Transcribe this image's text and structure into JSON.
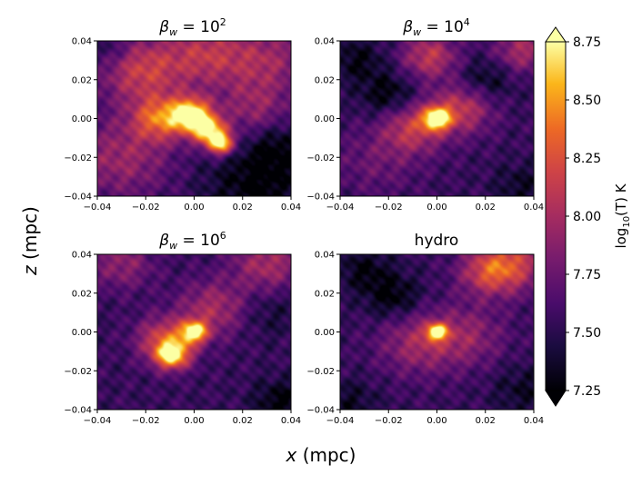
{
  "chart_data": {
    "type": "heatmap",
    "layout": "2x2 panel grid with shared colorbar",
    "xlabel": {
      "var": "x",
      "unit": "(mpc)"
    },
    "ylabel": {
      "var": "z",
      "unit": "(mpc)"
    },
    "xlim": [
      -0.04,
      0.04
    ],
    "ylim": [
      -0.04,
      0.04
    ],
    "x_ticks": [
      "−0.04",
      "−0.02",
      "0.00",
      "0.02",
      "0.04"
    ],
    "y_ticks": [
      "0.04",
      "0.02",
      "0.00",
      "−0.02",
      "−0.04"
    ],
    "colormap": "inferno",
    "colorbar": {
      "label_main": "log",
      "label_sub": "10",
      "label_rest": "(T) K",
      "range": [
        7.25,
        8.75
      ],
      "extend": "both",
      "ticks": [
        "8.75",
        "8.50",
        "8.25",
        "8.00",
        "7.75",
        "7.50",
        "7.25"
      ]
    },
    "panels": [
      {
        "title": {
          "symbol": "β",
          "subscript": "w",
          "rel": " = 10",
          "exponent": "2"
        },
        "hotspots": [
          {
            "x": -0.001,
            "y": 0.002,
            "log10T": 8.7,
            "spread": 0.006
          },
          {
            "x": 0.011,
            "y": -0.013,
            "log10T": 8.65,
            "spread": 0.004
          },
          {
            "x": 0.006,
            "y": -0.006,
            "log10T": 8.55,
            "spread": 0.005
          },
          {
            "x": -0.014,
            "y": 0.0,
            "log10T": 8.3,
            "spread": 0.008
          },
          {
            "x": -0.022,
            "y": 0.025,
            "log10T": 8.15,
            "spread": 0.012
          },
          {
            "x": 0.005,
            "y": 0.033,
            "log10T": 8.05,
            "spread": 0.012
          },
          {
            "x": -0.03,
            "y": -0.02,
            "log10T": 7.95,
            "spread": 0.014
          },
          {
            "x": 0.03,
            "y": 0.03,
            "log10T": 7.95,
            "spread": 0.012
          },
          {
            "x": 0.025,
            "y": 0.005,
            "log10T": 7.9,
            "spread": 0.01
          }
        ],
        "cold_regions": [
          {
            "x": 0.025,
            "y": -0.035,
            "log10T": 7.25,
            "spread": 0.014
          },
          {
            "x": 0.035,
            "y": -0.015,
            "log10T": 7.3,
            "spread": 0.01
          },
          {
            "x": -0.035,
            "y": 0.035,
            "log10T": 7.35,
            "spread": 0.008
          }
        ]
      },
      {
        "title": {
          "symbol": "β",
          "subscript": "w",
          "rel": " = 10",
          "exponent": "4"
        },
        "hotspots": [
          {
            "x": 0.0,
            "y": 0.0,
            "log10T": 8.7,
            "spread": 0.004
          },
          {
            "x": -0.01,
            "y": -0.005,
            "log10T": 8.1,
            "spread": 0.009
          },
          {
            "x": 0.01,
            "y": 0.005,
            "log10T": 8.1,
            "spread": 0.009
          },
          {
            "x": -0.003,
            "y": 0.032,
            "log10T": 8.1,
            "spread": 0.008
          },
          {
            "x": 0.035,
            "y": 0.035,
            "log10T": 8.0,
            "spread": 0.008
          },
          {
            "x": -0.025,
            "y": -0.022,
            "log10T": 7.75,
            "spread": 0.012
          }
        ],
        "cold_regions": [
          {
            "x": -0.02,
            "y": 0.012,
            "log10T": 7.25,
            "spread": 0.008
          },
          {
            "x": 0.02,
            "y": 0.02,
            "log10T": 7.3,
            "spread": 0.008
          },
          {
            "x": -0.033,
            "y": 0.03,
            "log10T": 7.3,
            "spread": 0.008
          },
          {
            "x": 0.035,
            "y": -0.035,
            "log10T": 7.35,
            "spread": 0.008
          }
        ]
      },
      {
        "title": {
          "symbol": "β",
          "subscript": "w",
          "rel": " = 10",
          "exponent": "6"
        },
        "hotspots": [
          {
            "x": 0.0,
            "y": 0.0,
            "log10T": 8.65,
            "spread": 0.004
          },
          {
            "x": -0.009,
            "y": -0.012,
            "log10T": 8.6,
            "spread": 0.005
          },
          {
            "x": -0.012,
            "y": -0.004,
            "log10T": 8.2,
            "spread": 0.008
          },
          {
            "x": 0.008,
            "y": 0.012,
            "log10T": 8.0,
            "spread": 0.01
          },
          {
            "x": 0.03,
            "y": 0.035,
            "log10T": 8.0,
            "spread": 0.01
          },
          {
            "x": -0.03,
            "y": 0.035,
            "log10T": 7.9,
            "spread": 0.009
          }
        ],
        "cold_regions": [
          {
            "x": 0.036,
            "y": -0.036,
            "log10T": 7.25,
            "spread": 0.008
          },
          {
            "x": 0.03,
            "y": 0.01,
            "log10T": 7.4,
            "spread": 0.009
          }
        ]
      },
      {
        "title": {
          "text": "hydro"
        },
        "hotspots": [
          {
            "x": 0.0,
            "y": 0.0,
            "log10T": 8.65,
            "spread": 0.003
          },
          {
            "x": -0.008,
            "y": -0.006,
            "log10T": 7.95,
            "spread": 0.011
          },
          {
            "x": 0.012,
            "y": -0.002,
            "log10T": 7.9,
            "spread": 0.011
          },
          {
            "x": 0.03,
            "y": 0.035,
            "log10T": 8.2,
            "spread": 0.01
          },
          {
            "x": 0.02,
            "y": 0.03,
            "log10T": 7.95,
            "spread": 0.008
          }
        ],
        "cold_regions": [
          {
            "x": -0.018,
            "y": 0.018,
            "log10T": 7.25,
            "spread": 0.008
          },
          {
            "x": -0.036,
            "y": -0.036,
            "log10T": 7.35,
            "spread": 0.008
          },
          {
            "x": 0.036,
            "y": -0.03,
            "log10T": 7.35,
            "spread": 0.009
          },
          {
            "x": -0.03,
            "y": 0.032,
            "log10T": 7.3,
            "spread": 0.008
          }
        ]
      }
    ]
  }
}
